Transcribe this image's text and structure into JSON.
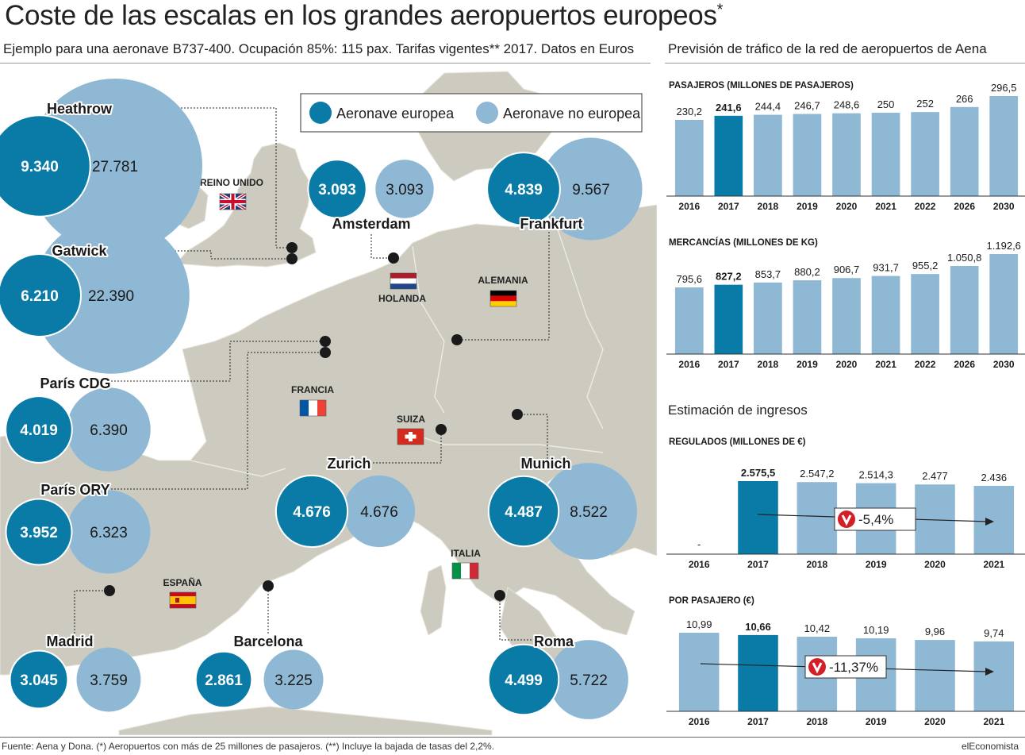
{
  "title": "Coste de las escalas en los grandes aeropuertos europeos",
  "title_mark": "*",
  "subtitle": "Ejemplo para una aeronave B737-400. Ocupación 85%: 115 pax. Tarifas vigentes** 2017. Datos en Euros",
  "right_title": "Previsión de tráfico de la red de aeropuertos de Aena",
  "income_title": "Estimación de ingresos",
  "footer_source": "Fuente: Aena y Dona. (*) Aeropuertos con más de 25 millones de pasajeros. (**) Incluye la bajada de tasas del 2,2%.",
  "footer_brand": "elEconomista",
  "colors": {
    "european": "#0a7aa6",
    "non_european": "#8fb8d4",
    "map_land": "#cdcbc0",
    "map_sea": "#ffffff",
    "bar_light": "#8fb8d4",
    "bar_dark": "#0a7aa6",
    "arrow_red": "#d31f26"
  },
  "legend": {
    "european": "Aeronave europea",
    "non_european": "Aeronave no europea"
  },
  "countries": [
    {
      "name": "REINO UNIDO",
      "flag": "uk"
    },
    {
      "name": "HOLANDA",
      "flag": "nl"
    },
    {
      "name": "ALEMANIA",
      "flag": "de"
    },
    {
      "name": "FRANCIA",
      "flag": "fr"
    },
    {
      "name": "SUIZA",
      "flag": "ch"
    },
    {
      "name": "ITALIA",
      "flag": "it"
    },
    {
      "name": "ESPAÑA",
      "flag": "es"
    }
  ],
  "chart_data": [
    {
      "type": "bubble",
      "title": "Coste de las escalas en los grandes aeropuertos europeos",
      "series": [
        {
          "name": "Aeronave europea",
          "airports": [
            "Heathrow",
            "Gatwick",
            "París CDG",
            "París ORY",
            "Madrid",
            "Barcelona",
            "Amsterdam",
            "Frankfurt",
            "Zurich",
            "Munich",
            "Roma"
          ],
          "values": [
            9340,
            6210,
            4019,
            3952,
            3045,
            2861,
            3093,
            4839,
            4676,
            4487,
            4499
          ],
          "labels": [
            "9.340",
            "6.210",
            "4.019",
            "3.952",
            "3.045",
            "2.861",
            "3.093",
            "4.839",
            "4.676",
            "4.487",
            "4.499"
          ]
        },
        {
          "name": "Aeronave no europea",
          "airports": [
            "Heathrow",
            "Gatwick",
            "París CDG",
            "París ORY",
            "Madrid",
            "Barcelona",
            "Amsterdam",
            "Frankfurt",
            "Zurich",
            "Munich",
            "Roma"
          ],
          "values": [
            27781,
            22390,
            6390,
            6323,
            3759,
            3225,
            3093,
            9567,
            4676,
            8522,
            5722
          ],
          "labels": [
            "27.781",
            "22.390",
            "6.390",
            "6.323",
            "3.759",
            "3.225",
            "3.093",
            "9.567",
            "4.676",
            "8.522",
            "5.722"
          ]
        }
      ]
    },
    {
      "type": "bar",
      "title": "PASAJEROS (MILLONES DE PASAJEROS)",
      "categories": [
        "2016",
        "2017",
        "2018",
        "2019",
        "2020",
        "2021",
        "2022",
        "2026",
        "2030"
      ],
      "values": [
        230.2,
        241.6,
        244.4,
        246.7,
        248.6,
        250,
        252,
        266,
        296.5
      ],
      "labels": [
        "230,2",
        "241,6",
        "244,4",
        "246,7",
        "248,6",
        "250",
        "252",
        "266",
        "296,5"
      ],
      "highlight": "2017"
    },
    {
      "type": "bar",
      "title": "MERCANCÍAS (MILLONES DE KG)",
      "categories": [
        "2016",
        "2017",
        "2018",
        "2019",
        "2020",
        "2021",
        "2022",
        "2026",
        "2030"
      ],
      "values": [
        795.6,
        827.2,
        853.7,
        880.2,
        906.7,
        931.7,
        955.2,
        1050.8,
        1192.6
      ],
      "labels": [
        "795,6",
        "827,2",
        "853,7",
        "880,2",
        "906,7",
        "931,7",
        "955,2",
        "1.050,8",
        "1.192,6"
      ],
      "highlight": "2017"
    },
    {
      "type": "bar",
      "title": "REGULADOS (MILLONES DE €)",
      "categories": [
        "2016",
        "2017",
        "2018",
        "2019",
        "2020",
        "2021"
      ],
      "values": [
        null,
        2575.5,
        2547.2,
        2514.3,
        2477,
        2436
      ],
      "labels": [
        "-",
        "2.575,5",
        "2.547,2",
        "2.514,3",
        "2.477",
        "2.436"
      ],
      "highlight": "2017",
      "trend": "-5,4%"
    },
    {
      "type": "bar",
      "title": "POR PASAJERO (€)",
      "categories": [
        "2016",
        "2017",
        "2018",
        "2019",
        "2020",
        "2021"
      ],
      "values": [
        10.99,
        10.66,
        10.42,
        10.19,
        9.96,
        9.74
      ],
      "labels": [
        "10,99",
        "10,66",
        "10,42",
        "10,19",
        "9,96",
        "9,74"
      ],
      "highlight": "2017",
      "trend": "-11,37%"
    }
  ]
}
